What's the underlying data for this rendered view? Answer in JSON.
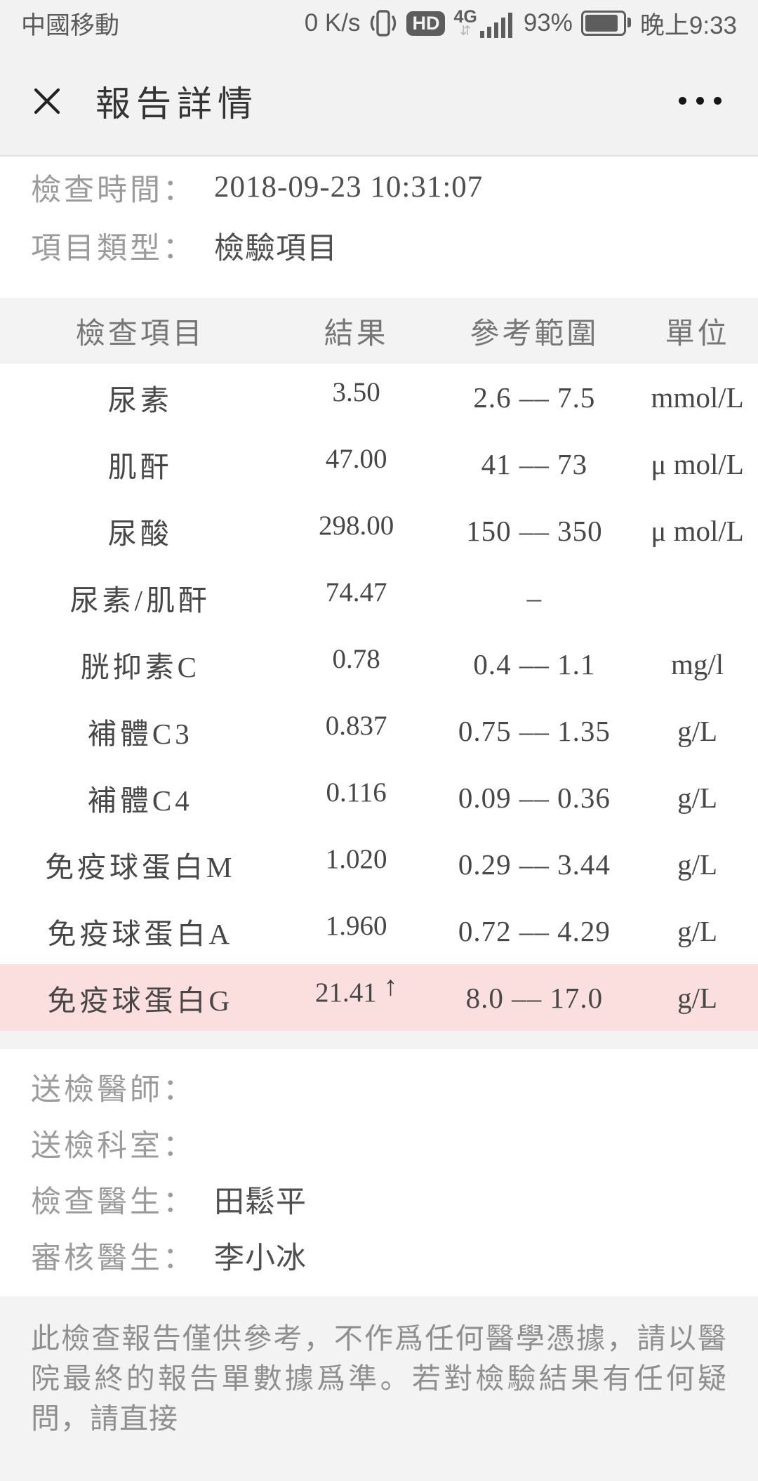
{
  "status_bar": {
    "carrier": "中國移動",
    "network_speed": "0 K/s",
    "hd_label": "HD",
    "network_type": "4G",
    "updown_arrows": "⇵",
    "battery_percent": "93%",
    "time": "晚上9:33"
  },
  "header": {
    "title": "報告詳情"
  },
  "meta": {
    "rows": [
      {
        "label": "檢查時間：",
        "value": "2018-09-23 10:31:07"
      },
      {
        "label": "項目類型：",
        "value": "檢驗項目"
      }
    ]
  },
  "table": {
    "headers": [
      "檢查項目",
      "結果",
      "參考範圍",
      "單位"
    ],
    "rows": [
      {
        "item": "尿素",
        "result": "3.50",
        "flag": "",
        "range": "2.6 –– 7.5",
        "unit": "mmol/L",
        "abnormal": false
      },
      {
        "item": "肌酐",
        "result": "47.00",
        "flag": "",
        "range": "41 –– 73",
        "unit": "μ mol/L",
        "abnormal": false
      },
      {
        "item": "尿酸",
        "result": "298.00",
        "flag": "",
        "range": "150 –– 350",
        "unit": "μ mol/L",
        "abnormal": false
      },
      {
        "item": "尿素/肌酐",
        "result": "74.47",
        "flag": "",
        "range": "–",
        "unit": "",
        "abnormal": false
      },
      {
        "item": "胱抑素C",
        "result": "0.78",
        "flag": "",
        "range": "0.4 –– 1.1",
        "unit": "mg/l",
        "abnormal": false
      },
      {
        "item": "補體C3",
        "result": "0.837",
        "flag": "",
        "range": "0.75 –– 1.35",
        "unit": "g/L",
        "abnormal": false
      },
      {
        "item": "補體C4",
        "result": "0.116",
        "flag": "",
        "range": "0.09 –– 0.36",
        "unit": "g/L",
        "abnormal": false
      },
      {
        "item": "免疫球蛋白M",
        "result": "1.020",
        "flag": "",
        "range": "0.29 –– 3.44",
        "unit": "g/L",
        "abnormal": false
      },
      {
        "item": "免疫球蛋白A",
        "result": "1.960",
        "flag": "",
        "range": "0.72 –– 4.29",
        "unit": "g/L",
        "abnormal": false
      },
      {
        "item": "免疫球蛋白G",
        "result": "21.41",
        "flag": "↑",
        "range": "8.0 –– 17.0",
        "unit": "g/L",
        "abnormal": true
      }
    ]
  },
  "footer": {
    "rows": [
      {
        "label": "送檢醫師：",
        "value": ""
      },
      {
        "label": "送檢科室：",
        "value": ""
      },
      {
        "label": "檢查醫生：",
        "value": "田鬆平"
      },
      {
        "label": "審核醫生：",
        "value": "李小冰"
      }
    ],
    "disclaimer": "此檢查報告僅供參考，不作爲任何醫學憑據，請以醫院最終的報告單數據爲準。若對檢驗結果有任何疑問，請直接"
  },
  "colors": {
    "abnormal_row_bg": "#fbdede",
    "chrome_bg": "#f2f2f3",
    "table_header_bg": "#f3f3f4",
    "label_gray": "#9b9b9b",
    "value_gray": "#4f4f4f"
  },
  "icons": {
    "close": "close-icon",
    "more": "more-icon",
    "vibrate": "vibrate-icon",
    "hd": "hd-icon",
    "signal": "signal-bars-icon",
    "battery": "battery-icon",
    "abnormal_flag": "up-arrow-icon"
  }
}
